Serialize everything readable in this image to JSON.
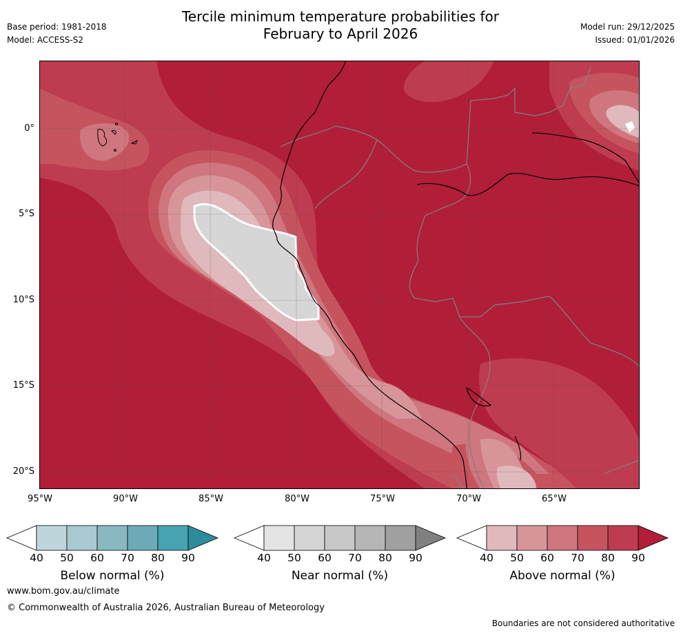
{
  "header": {
    "title_line1": "Tercile minimum temperature probabilities for",
    "title_line2": "February to April 2026",
    "base_period": "Base period: 1981-2018",
    "model": "Model: ACCESS-S2",
    "model_run": "Model run: 29/12/2025",
    "issued": "Issued: 01/01/2026"
  },
  "map": {
    "x_ticks": [
      "95°W",
      "90°W",
      "85°W",
      "80°W",
      "75°W",
      "70°W",
      "65°W"
    ],
    "y_ticks": [
      "0°",
      "5°S",
      "10°S",
      "15°S",
      "20°S"
    ],
    "colors": {
      "above_90": "#b11e38",
      "above_80": "#be3c4f",
      "above_70": "#c6545f",
      "above_60": "#cf767e",
      "above_50": "#d7959a",
      "above_40": "#e0b9bc",
      "near_50": "#d6d6d6",
      "coast": "#000000",
      "border": "#808080"
    }
  },
  "colorbars": [
    {
      "label": "Below normal (%)",
      "ticks": [
        "40",
        "50",
        "60",
        "70",
        "80",
        "90"
      ],
      "colors": [
        "#ffffff",
        "#bed6db",
        "#a7c9cf",
        "#89b8c2",
        "#6caab6",
        "#47a2b1",
        "#2c8c9c"
      ]
    },
    {
      "label": "Near normal (%)",
      "ticks": [
        "40",
        "50",
        "60",
        "70",
        "80",
        "90"
      ],
      "colors": [
        "#ffffff",
        "#e4e4e4",
        "#d5d5d5",
        "#c8c8c8",
        "#b6b6b6",
        "#a0a0a0",
        "#808080"
      ]
    },
    {
      "label": "Above normal (%)",
      "ticks": [
        "40",
        "50",
        "60",
        "70",
        "80",
        "90"
      ],
      "colors": [
        "#ffffff",
        "#e0b9bc",
        "#d7959a",
        "#cf767e",
        "#c6545f",
        "#be3c4f",
        "#b11e38"
      ]
    }
  ],
  "footer": {
    "url": "www.bom.gov.au/climate",
    "copyright": "© Commonwealth of Australia 2026, Australian Bureau of Meteorology",
    "note": "Boundaries are not considered authoritative"
  }
}
